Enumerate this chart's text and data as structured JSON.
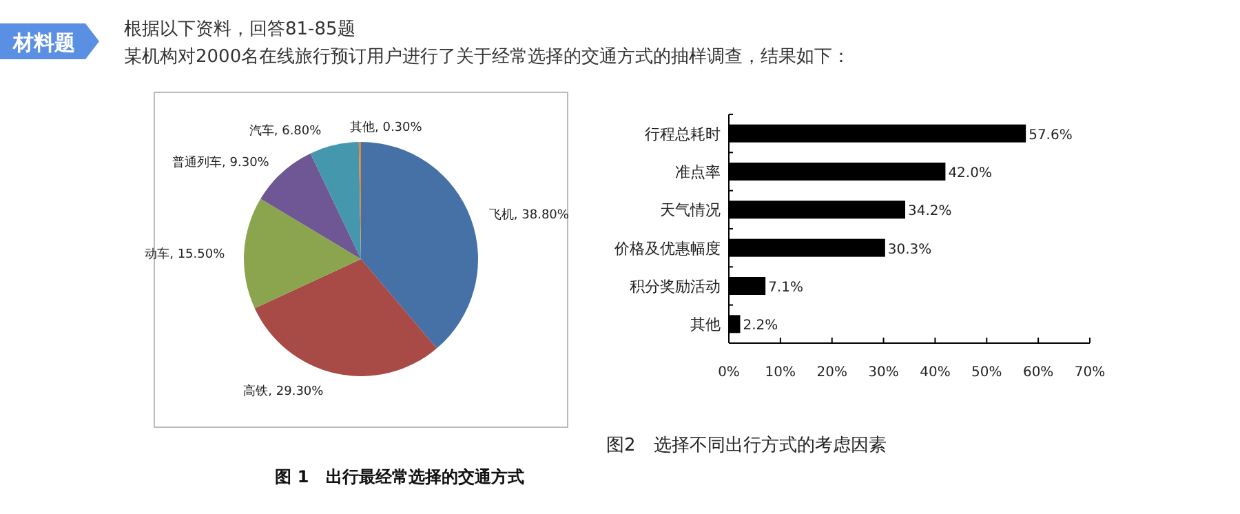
{
  "chart_data": [
    {
      "type": "pie",
      "title": "图 1　出行最经常选择的交通方式",
      "annotations": [
        "材料题",
        "根据以下资料，回答81-85题",
        "某机构对2000名在线旅行预订用户进行了关于经常选择的交通方式的抽样调查，结果如下："
      ],
      "categories": [
        "飞机",
        "高铁",
        "动车",
        "普通列车",
        "汽车",
        "其他"
      ],
      "values": [
        38.8,
        29.3,
        15.5,
        9.3,
        6.8,
        0.3
      ],
      "value_labels": [
        ", 38.80%",
        ", 29.30%",
        ", 15.50%",
        ", 9.30%",
        ", 6.80%",
        ", 0.30%"
      ],
      "colors": [
        "#4571a7",
        "#a84a46",
        "#8aa54e",
        "#6f5795",
        "#4597ae",
        "#e0883a"
      ]
    },
    {
      "type": "bar",
      "orientation": "horizontal",
      "title": "图2　选择不同出行方式的考虑因素",
      "categories": [
        "行程总耗时",
        "准点率",
        "天气情况",
        "价格及优惠幅度",
        "积分奖励活动",
        "其他"
      ],
      "values": [
        57.6,
        42.0,
        34.2,
        30.3,
        7.1,
        2.2
      ],
      "value_labels": [
        "57.6%",
        "42.0%",
        "34.2%",
        "30.3%",
        "7.1%",
        "2.2%"
      ],
      "color": "#000000",
      "xlim": [
        0,
        70
      ],
      "xticks": [
        {
          "value": 0,
          "label": "0%"
        },
        {
          "value": 10,
          "label": "10%"
        },
        {
          "value": 20,
          "label": "20%"
        },
        {
          "value": 30,
          "label": "30%"
        },
        {
          "value": 40,
          "label": "40%"
        },
        {
          "value": 50,
          "label": "50%"
        },
        {
          "value": 60,
          "label": "60%"
        },
        {
          "value": 70,
          "label": "70%"
        }
      ]
    }
  ]
}
